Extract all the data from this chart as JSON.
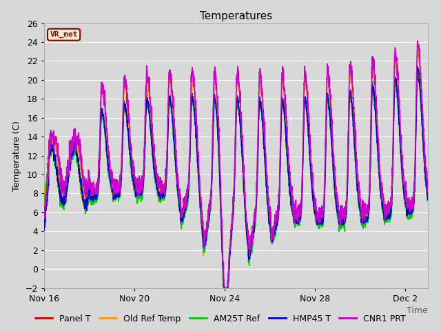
{
  "title": "Temperatures",
  "time_label": "Time",
  "ylabel": "Temperature (C)",
  "ylim": [
    -2,
    26
  ],
  "yticks": [
    -2,
    0,
    2,
    4,
    6,
    8,
    10,
    12,
    14,
    16,
    18,
    20,
    22,
    24,
    26
  ],
  "background_color": "#d8d8d8",
  "plot_bg_color": "#d8d8d8",
  "grid_color": "#ffffff",
  "series": [
    {
      "label": "Panel T",
      "color": "#cc0000",
      "lw": 1.0
    },
    {
      "label": "Old Ref Temp",
      "color": "#ff9900",
      "lw": 1.0
    },
    {
      "label": "AM25T Ref",
      "color": "#00cc00",
      "lw": 1.0
    },
    {
      "label": "HMP45 T",
      "color": "#0000cc",
      "lw": 1.2
    },
    {
      "label": "CNR1 PRT",
      "color": "#cc00cc",
      "lw": 1.2
    }
  ],
  "annotation_text": "VR_met",
  "annotation_color": "#8b0000",
  "annotation_bg": "#f0f0d0",
  "annotation_border": "#8b0000",
  "xtick_labels": [
    "Nov 16",
    "Nov 20",
    "Nov 24",
    "Nov 28",
    "Dec 2"
  ],
  "title_fontsize": 11,
  "axis_fontsize": 9,
  "legend_fontsize": 9,
  "figwidth": 6.4,
  "figheight": 4.8,
  "dpi": 100
}
